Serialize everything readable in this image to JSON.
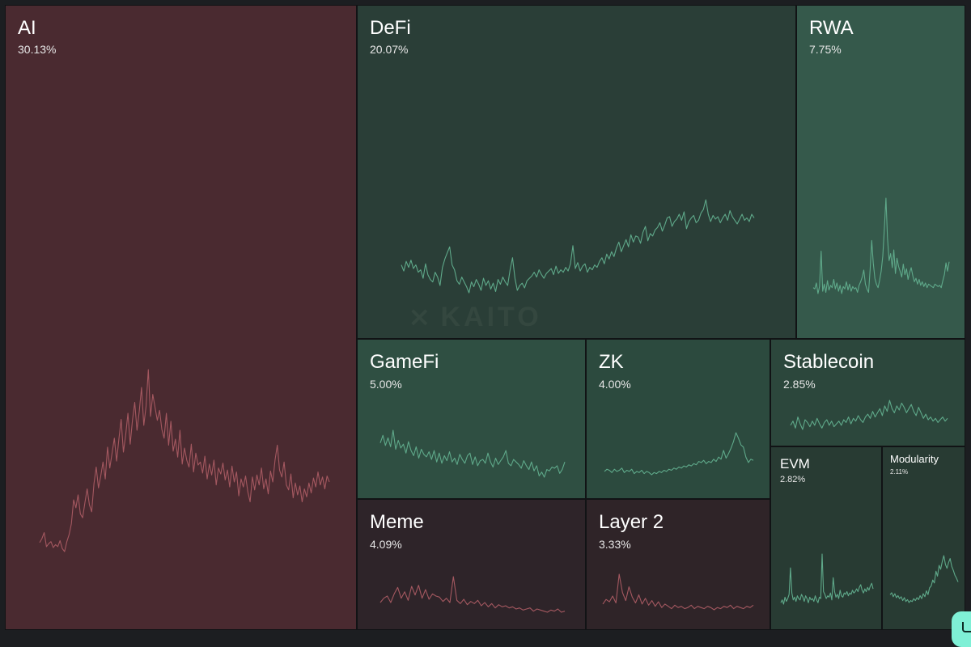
{
  "watermark": "KAITO",
  "colors": {
    "positive_line": "#5fa98a",
    "negative_line": "#a45860",
    "chat_button": "#7ff0d6"
  },
  "chat_icon": "chat-bubble-icon",
  "chart_data": {
    "type": "treemap",
    "tiles": [
      {
        "id": "ai",
        "label": "AI",
        "percent": "30.13%",
        "trend": "negative",
        "sparkline": [
          13,
          17,
          23,
          9,
          12,
          14,
          8,
          11,
          9,
          15,
          7,
          4,
          14,
          21,
          32,
          56,
          48,
          61,
          42,
          38,
          53,
          67,
          51,
          44,
          72,
          89,
          68,
          80,
          94,
          77,
          109,
          88,
          103,
          118,
          95,
          117,
          137,
          104,
          121,
          143,
          112,
          136,
          154,
          126,
          145,
          169,
          131,
          150,
          187,
          140,
          162,
          149,
          136,
          146,
          127,
          118,
          143,
          111,
          135,
          105,
          117,
          99,
          126,
          92,
          108,
          96,
          89,
          112,
          84,
          103,
          91,
          94,
          83,
          100,
          77,
          92,
          81,
          96,
          71,
          88,
          82,
          93,
          76,
          86,
          69,
          90,
          74,
          84,
          60,
          77,
          69,
          80,
          64,
          54,
          79,
          66,
          81,
          71,
          88,
          67,
          77,
          62,
          85,
          74,
          96,
          111,
          86,
          79,
          94,
          71,
          66,
          82,
          58,
          73,
          61,
          70,
          54,
          67,
          59,
          73,
          63,
          78,
          69,
          84,
          71,
          79,
          67,
          80,
          74
        ]
      },
      {
        "id": "defi",
        "label": "DeFi",
        "percent": "20.07%",
        "trend": "positive",
        "sparkline": [
          20,
          15,
          23,
          18,
          24,
          17,
          20,
          14,
          16,
          9,
          21,
          12,
          8,
          6,
          14,
          10,
          3,
          18,
          25,
          30,
          35,
          20,
          16,
          7,
          4,
          10,
          6,
          2,
          -3,
          6,
          2,
          8,
          4,
          -1,
          9,
          3,
          7,
          0,
          5,
          -2,
          8,
          4,
          10,
          6,
          3,
          16,
          26,
          9,
          -1,
          3,
          5,
          1,
          7,
          9,
          11,
          14,
          10,
          16,
          12,
          9,
          13,
          15,
          17,
          12,
          19,
          13,
          16,
          14,
          18,
          15,
          21,
          36,
          17,
          22,
          15,
          19,
          21,
          14,
          18,
          16,
          20,
          18,
          23,
          26,
          21,
          29,
          25,
          31,
          27,
          34,
          39,
          31,
          36,
          41,
          35,
          45,
          39,
          44,
          43,
          38,
          47,
          52,
          40,
          46,
          44,
          49,
          51,
          55,
          48,
          53,
          59,
          60,
          52,
          56,
          58,
          62,
          57,
          64,
          50,
          56,
          59,
          61,
          55,
          57,
          63,
          66,
          74,
          62,
          56,
          61,
          58,
          60,
          55,
          59,
          62,
          57,
          65,
          60,
          57,
          54,
          58,
          62,
          57,
          59,
          56,
          62,
          59
        ]
      },
      {
        "id": "rwa",
        "label": "RWA",
        "percent": "7.75%",
        "trend": "positive",
        "sparkline": [
          13,
          12,
          17,
          8,
          14,
          44,
          10,
          16,
          9,
          19,
          11,
          15,
          13,
          20,
          12,
          17,
          10,
          15,
          8,
          14,
          12,
          18,
          11,
          16,
          10,
          14,
          12,
          13,
          9,
          15,
          18,
          22,
          28,
          16,
          12,
          9,
          28,
          53,
          34,
          21,
          16,
          13,
          19,
          27,
          40,
          63,
          89,
          55,
          36,
          42,
          30,
          45,
          25,
          38,
          31,
          27,
          22,
          33,
          24,
          29,
          20,
          26,
          30,
          23,
          18,
          21,
          16,
          20,
          15,
          18,
          14,
          17,
          13,
          16,
          15,
          14,
          13,
          16,
          15,
          14,
          15,
          13,
          19,
          24,
          34,
          27,
          35
        ]
      },
      {
        "id": "gamefi",
        "label": "GameFi",
        "percent": "5.00%",
        "trend": "positive",
        "sparkline": [
          30,
          36,
          28,
          34,
          27,
          40,
          25,
          32,
          26,
          29,
          22,
          31,
          24,
          20,
          27,
          18,
          25,
          21,
          19,
          23,
          17,
          24,
          15,
          22,
          14,
          20,
          16,
          23,
          15,
          18,
          13,
          21,
          17,
          14,
          20,
          22,
          13,
          19,
          12,
          16,
          17,
          14,
          22,
          15,
          11,
          18,
          13,
          16,
          19,
          24,
          14,
          12,
          17,
          15,
          13,
          10,
          16,
          12,
          9,
          15,
          8,
          12,
          4,
          7,
          3,
          9,
          8,
          11,
          10,
          12,
          6,
          9,
          15
        ]
      },
      {
        "id": "zk",
        "label": "ZK",
        "percent": "4.00%",
        "trend": "positive",
        "sparkline": [
          3,
          5,
          4,
          2,
          5,
          3,
          4,
          6,
          2,
          4,
          3,
          5,
          1,
          3,
          2,
          4,
          1,
          3,
          2,
          0,
          2,
          1,
          3,
          2,
          4,
          3,
          5,
          4,
          6,
          5,
          7,
          6,
          8,
          7,
          9,
          8,
          10,
          9,
          12,
          11,
          13,
          10,
          12,
          11,
          14,
          12,
          16,
          14,
          22,
          15,
          19,
          24,
          30,
          38,
          33,
          27,
          25,
          16,
          11,
          14,
          13
        ]
      },
      {
        "id": "stablecoin",
        "label": "Stablecoin",
        "percent": "2.85%",
        "trend": "positive",
        "sparkline": [
          6,
          9,
          4,
          12,
          7,
          3,
          10,
          8,
          5,
          9,
          6,
          11,
          7,
          4,
          8,
          10,
          6,
          9,
          5,
          7,
          9,
          6,
          10,
          8,
          12,
          7,
          11,
          9,
          13,
          10,
          8,
          12,
          14,
          11,
          16,
          12,
          15,
          18,
          13,
          20,
          16,
          24,
          18,
          15,
          20,
          17,
          22,
          19,
          15,
          18,
          21,
          16,
          13,
          19,
          15,
          11,
          14,
          10,
          12,
          9,
          11,
          8,
          10,
          12,
          9,
          11
        ]
      },
      {
        "id": "meme",
        "label": "Meme",
        "percent": "4.09%",
        "trend": "negative",
        "sparkline": [
          10,
          14,
          16,
          10,
          18,
          24,
          14,
          20,
          12,
          25,
          17,
          26,
          14,
          22,
          13,
          18,
          16,
          15,
          11,
          14,
          10,
          34,
          12,
          9,
          13,
          8,
          11,
          9,
          12,
          7,
          10,
          6,
          9,
          5,
          8,
          6,
          7,
          5,
          6,
          4,
          5,
          3,
          4,
          5,
          2,
          4,
          3,
          2,
          1,
          3,
          2,
          4,
          1,
          2
        ]
      },
      {
        "id": "layer2",
        "label": "Layer 2",
        "percent": "3.33%",
        "trend": "negative",
        "sparkline": [
          6,
          10,
          8,
          13,
          7,
          32,
          16,
          9,
          21,
          12,
          7,
          14,
          6,
          11,
          5,
          9,
          4,
          8,
          3,
          6,
          4,
          2,
          5,
          3,
          4,
          2,
          3,
          5,
          2,
          4,
          3,
          2,
          4,
          3,
          1,
          3,
          2,
          4,
          3,
          5,
          2,
          4,
          3,
          2,
          4,
          3,
          5
        ]
      },
      {
        "id": "evm",
        "label": "EVM",
        "percent": "2.82%",
        "trend": "positive",
        "sparkline": [
          8,
          10,
          7,
          12,
          9,
          11,
          14,
          33,
          15,
          10,
          12,
          9,
          13,
          11,
          10,
          14,
          12,
          9,
          13,
          11,
          8,
          12,
          10,
          11,
          9,
          13,
          10,
          8,
          12,
          11,
          43,
          16,
          14,
          11,
          13,
          12,
          15,
          10,
          26,
          16,
          12,
          14,
          11,
          17,
          13,
          12,
          15,
          14,
          16,
          13,
          15,
          14,
          17,
          15,
          16,
          18,
          16,
          19,
          21,
          17,
          15,
          18,
          16,
          19,
          17,
          20,
          22,
          18
        ]
      },
      {
        "id": "modularity",
        "label": "Modularity",
        "percent": "2.11%",
        "trend": "positive",
        "sparkline": [
          18,
          20,
          16,
          19,
          15,
          17,
          14,
          16,
          12,
          15,
          11,
          13,
          10,
          12,
          11,
          14,
          12,
          15,
          13,
          17,
          14,
          19,
          16,
          22,
          18,
          25,
          27,
          33,
          30,
          42,
          37,
          48,
          44,
          52,
          58,
          49,
          45,
          51,
          55,
          47,
          43,
          38,
          35,
          31
        ]
      }
    ]
  }
}
